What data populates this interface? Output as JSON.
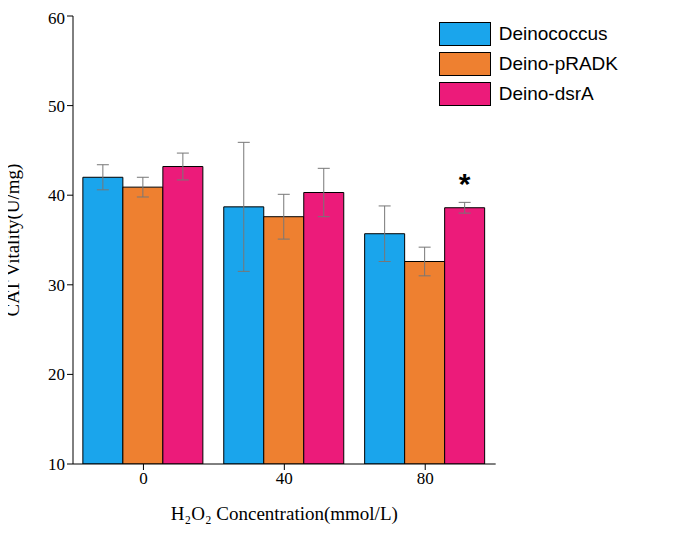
{
  "chart_data": {
    "type": "bar",
    "x_label": "H₂O₂ Concentration(mmol/L)",
    "y_label": "CAT Vitality(U/mg)",
    "categories": [
      "0",
      "40",
      "80"
    ],
    "series": [
      {
        "name": "Deinococcus",
        "color": "#1aa5ec",
        "values": [
          42.0,
          38.7,
          35.7
        ],
        "errors": [
          1.4,
          7.2,
          3.1
        ]
      },
      {
        "name": "Deino-pRADK",
        "color": "#ee8030",
        "values": [
          40.9,
          37.6,
          32.6
        ],
        "errors": [
          1.1,
          2.5,
          1.6
        ]
      },
      {
        "name": "Deino-dsrA",
        "color": "#ec1b7a",
        "values": [
          43.2,
          40.3,
          38.6
        ],
        "errors": [
          1.5,
          2.7,
          0.6
        ]
      }
    ],
    "ylim": [
      10,
      60
    ],
    "yticks": [
      10,
      20,
      30,
      40,
      50,
      60
    ],
    "grid": false,
    "legend": "upper right",
    "annotations": [
      {
        "text": "*",
        "category": "80",
        "series": "Deino-dsrA"
      }
    ]
  }
}
